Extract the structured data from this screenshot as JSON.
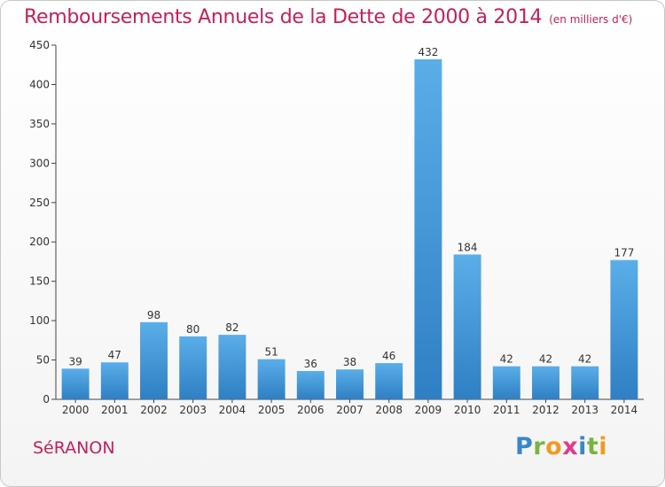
{
  "header": {
    "title": "Remboursements Annuels de la Dette de 2000 à 2014",
    "subtitle": "(en milliers d'€)"
  },
  "footer": {
    "town": "SéRANON",
    "brand": "Proxiti"
  },
  "chart_data": {
    "type": "bar",
    "title": "Remboursements Annuels de la Dette de 2000 à 2014",
    "subtitle": "(en milliers d'€)",
    "xlabel": "",
    "ylabel": "",
    "categories": [
      "2000",
      "2001",
      "2002",
      "2003",
      "2004",
      "2005",
      "2006",
      "2007",
      "2008",
      "2009",
      "2010",
      "2011",
      "2012",
      "2013",
      "2014"
    ],
    "values": [
      39,
      47,
      98,
      80,
      82,
      51,
      36,
      38,
      46,
      432,
      184,
      42,
      42,
      42,
      177
    ],
    "ylim": [
      0,
      450
    ],
    "yticks": [
      0,
      50,
      100,
      150,
      200,
      250,
      300,
      350,
      400,
      450
    ],
    "grid": false,
    "show_value_labels": true,
    "colors": {
      "bar_top": "#5aaee8",
      "bar_bottom": "#2f7fc4",
      "axis": "#444444",
      "text": "#333333",
      "accent": "#c4205a"
    }
  }
}
